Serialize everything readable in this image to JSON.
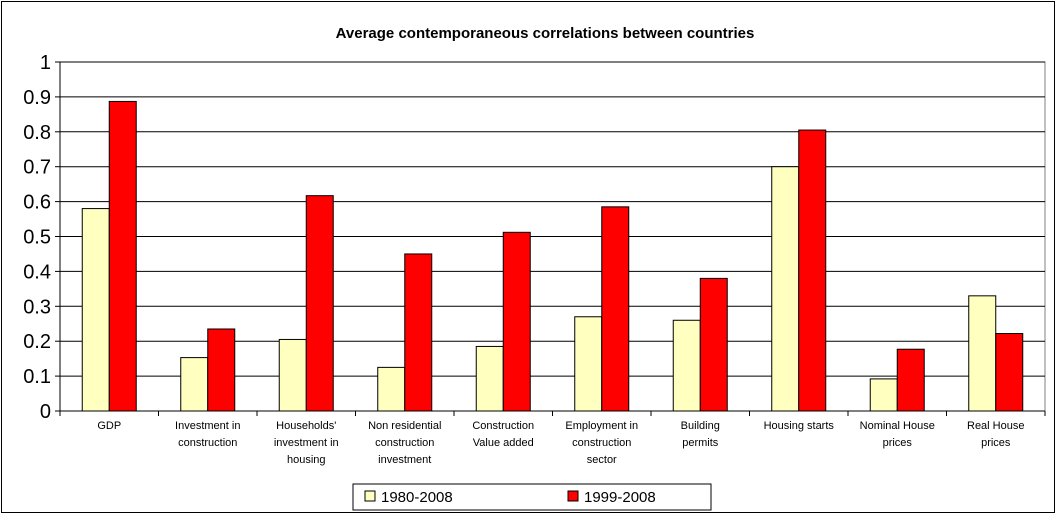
{
  "chart_data": {
    "type": "bar",
    "title": "Average contemporaneous correlations between  countries",
    "xlabel": "",
    "ylabel": "",
    "ylim": [
      0,
      1
    ],
    "yticks": [
      "0",
      "0.1",
      "0.2",
      "0.3",
      "0.4",
      "0.5",
      "0.6",
      "0.7",
      "0.8",
      "0.9",
      "1"
    ],
    "grid": true,
    "legend_position": "bottom",
    "categories": [
      [
        "GDP"
      ],
      [
        "Investment in",
        "construction"
      ],
      [
        "Households'",
        "investment in",
        "housing"
      ],
      [
        "Non residential",
        "construction",
        "investment"
      ],
      [
        "Construction",
        "Value added"
      ],
      [
        "Employment in",
        "construction",
        "sector"
      ],
      [
        "Building",
        "permits"
      ],
      [
        "Housing starts"
      ],
      [
        "Nominal House",
        "prices"
      ],
      [
        "Real House",
        "prices"
      ]
    ],
    "series": [
      {
        "name": "1980-2008",
        "color": "#FFFFC0",
        "values": [
          0.58,
          0.153,
          0.205,
          0.125,
          0.185,
          0.27,
          0.26,
          0.7,
          0.092,
          0.33
        ]
      },
      {
        "name": "1999-2008",
        "color": "#FF0000",
        "values": [
          0.887,
          0.235,
          0.617,
          0.45,
          0.512,
          0.585,
          0.38,
          0.805,
          0.177,
          0.222
        ]
      }
    ]
  }
}
